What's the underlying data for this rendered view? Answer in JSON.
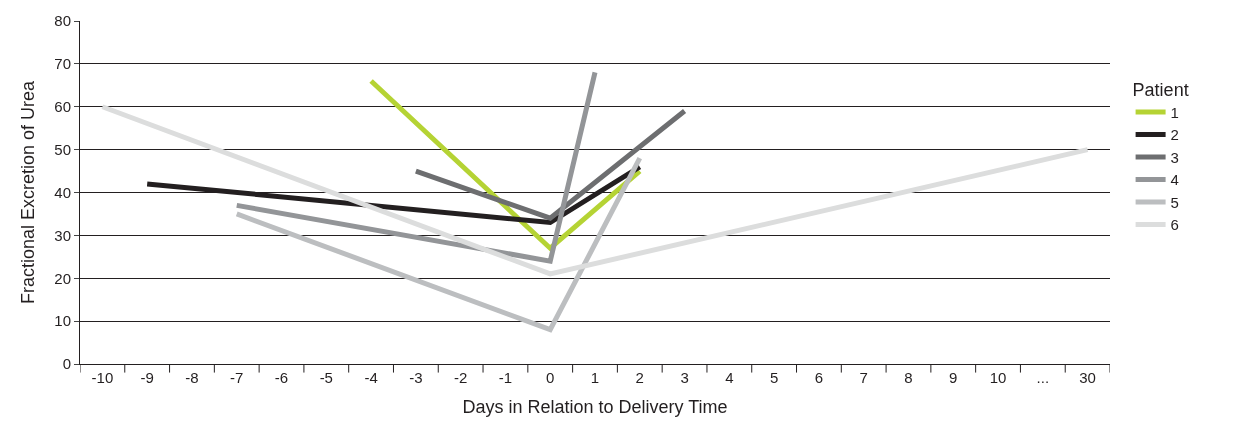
{
  "chart_data": {
    "type": "line",
    "xlabel": "Days in Relation to Delivery Time",
    "ylabel": "Fractional Excretion of Urea",
    "legend_title": "Patient",
    "categories": [
      "-10",
      "-9",
      "-8",
      "-7",
      "-6",
      "-5",
      "-4",
      "-3",
      "-2",
      "-1",
      "0",
      "1",
      "2",
      "3",
      "4",
      "5",
      "6",
      "7",
      "8",
      "9",
      "10",
      "...",
      "30"
    ],
    "series": [
      {
        "name": "1",
        "color": "#b5d334",
        "x": [
          "-4",
          "0",
          "2"
        ],
        "values": [
          66,
          27,
          45
        ]
      },
      {
        "name": "2",
        "color": "#231f20",
        "x": [
          "-9",
          "0",
          "2"
        ],
        "values": [
          42,
          33,
          46
        ]
      },
      {
        "name": "3",
        "color": "#6d6e70",
        "x": [
          "-3",
          "0",
          "3"
        ],
        "values": [
          45,
          34,
          59
        ]
      },
      {
        "name": "4",
        "color": "#939598",
        "x": [
          "-7",
          "0",
          "1"
        ],
        "values": [
          37,
          24,
          68
        ]
      },
      {
        "name": "5",
        "color": "#bcbec0",
        "x": [
          "-7",
          "0",
          "2"
        ],
        "values": [
          35,
          8,
          48
        ]
      },
      {
        "name": "6",
        "color": "#dcdddd",
        "x": [
          "-10",
          "0",
          "30"
        ],
        "values": [
          60,
          21,
          50
        ]
      }
    ],
    "ylim": [
      0,
      80
    ],
    "yticks": [
      0,
      10,
      20,
      30,
      40,
      50,
      60,
      70,
      80
    ],
    "grid": "y",
    "legend": "right",
    "marker": "none",
    "line_style": "solid"
  }
}
